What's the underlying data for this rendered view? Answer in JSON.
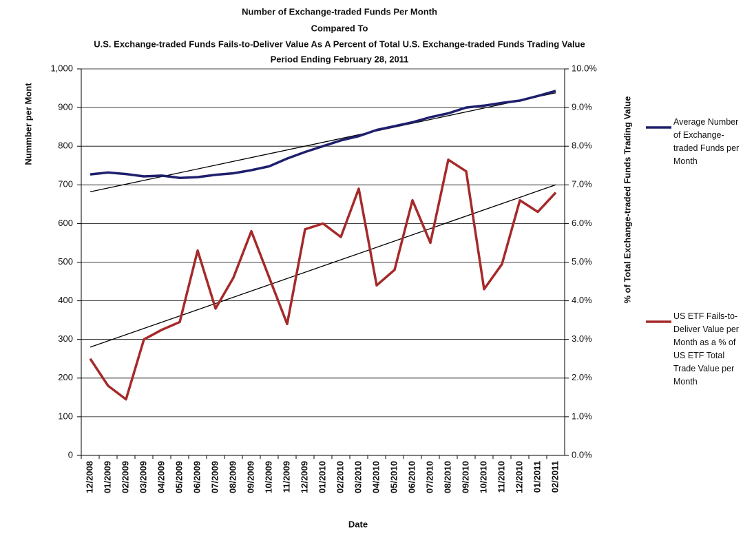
{
  "chart_data": {
    "type": "line",
    "title": "Number of Exchange-traded Funds Per Month",
    "subtitle": [
      "Compared To",
      "U.S. Exchange-traded Funds Fails-to-Deliver Value As A Percent of Total U.S. Exchange-traded Funds Trading Value",
      "Period Ending February 28, 2011"
    ],
    "x_label": "Date",
    "y_label": "Nummber per Mont",
    "y2_label": "% of Total Exchange-traded Funds Trading Value",
    "categories": [
      "12/2008",
      "01/2009",
      "02/2009",
      "03/2009",
      "04/2009",
      "05/2009",
      "06/2009",
      "07/2009",
      "08/2009",
      "09/2009",
      "10/2009",
      "11/2009",
      "12/2009",
      "01/2010",
      "02/2010",
      "03/2010",
      "04/2010",
      "05/2010",
      "06/2010",
      "07/2010",
      "08/2010",
      "09/2010",
      "10/2010",
      "11/2010",
      "12/2010",
      "01/2011",
      "02/2011"
    ],
    "series": [
      {
        "name": "Average Number of Exchange-traded Funds per Month",
        "color": "#1f1f6e",
        "axis": "y",
        "values": [
          727,
          732,
          728,
          722,
          724,
          718,
          720,
          726,
          730,
          738,
          748,
          768,
          785,
          800,
          815,
          826,
          842,
          852,
          862,
          875,
          885,
          900,
          905,
          912,
          918,
          930,
          943
        ]
      },
      {
        "name": "US ETF Fails-to-Deliver Value per Month as a % of US ETF Total Trade Value per Month",
        "color": "#a52a2a",
        "axis": "y2",
        "values": [
          2.5,
          1.8,
          1.45,
          3.0,
          3.25,
          3.45,
          5.3,
          3.8,
          4.6,
          5.8,
          4.6,
          3.4,
          5.85,
          6.0,
          5.65,
          6.9,
          4.4,
          4.8,
          6.6,
          5.5,
          7.65,
          7.35,
          4.3,
          4.95,
          6.6,
          6.3,
          6.8
        ]
      }
    ],
    "trendlines": [
      {
        "axis": "y",
        "color": "#000000",
        "values": [
          682,
          938
        ]
      },
      {
        "axis": "y2",
        "color": "#000000",
        "values": [
          2.8,
          7.0
        ]
      }
    ],
    "ylim": [
      0,
      1000
    ],
    "yticks": [
      0,
      100,
      200,
      300,
      400,
      500,
      600,
      700,
      800,
      900,
      {
        "value": 1000,
        "label": "1,000"
      }
    ],
    "y2lim": [
      0,
      10
    ],
    "y2ticks": [
      {
        "value": 0,
        "label": "0.0%"
      },
      {
        "value": 1,
        "label": "1.0%"
      },
      {
        "value": 2,
        "label": "2.0%"
      },
      {
        "value": 3,
        "label": "3.0%"
      },
      {
        "value": 4,
        "label": "4.0%"
      },
      {
        "value": 5,
        "label": "5.0%"
      },
      {
        "value": 6,
        "label": "6.0%"
      },
      {
        "value": 7,
        "label": "7.0%"
      },
      {
        "value": 8,
        "label": "8.0%"
      },
      {
        "value": 9,
        "label": "9.0%"
      },
      {
        "value": 10,
        "label": "10.0%"
      }
    ],
    "grid": true
  }
}
